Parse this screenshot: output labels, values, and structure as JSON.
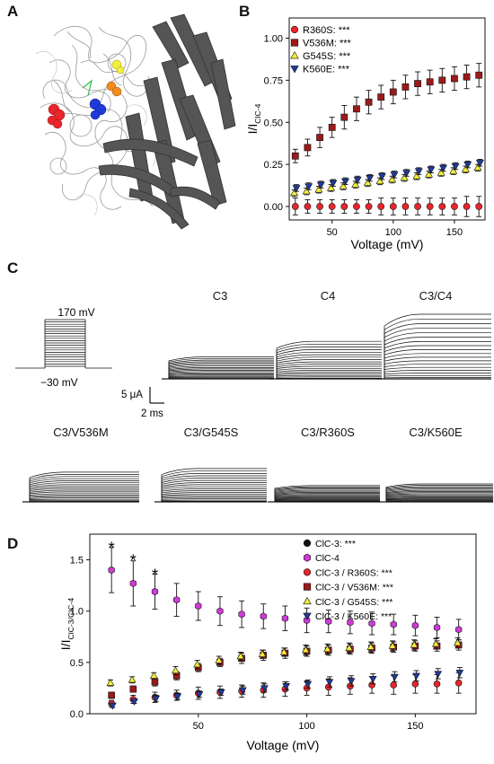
{
  "panels": {
    "a": "A",
    "b": "B",
    "c": "C",
    "d": "D"
  },
  "panel_c": {
    "protocol": {
      "top_label": "170 mV",
      "bottom_label": "−30 mV"
    },
    "scale_bar": {
      "current": "5 μA",
      "time": "2 ms"
    },
    "traces": [
      {
        "label": "C3",
        "amp": 0.34
      },
      {
        "label": "C4",
        "amp": 0.58
      },
      {
        "label": "C3/C4",
        "amp": 1.0
      },
      {
        "label": "C3/V536M",
        "amp": 0.58
      },
      {
        "label": "C3/G545S",
        "amp": 0.65
      },
      {
        "label": "C3/R360S",
        "amp": 0.32
      },
      {
        "label": "C3/K560E",
        "amp": 0.35
      }
    ]
  },
  "chart_data": [
    {
      "type": "scatter",
      "ylabel_main": "I/I",
      "ylabel_sub": "ClC-4",
      "xlabel": "Voltage (mV)",
      "xlim": [
        15,
        175
      ],
      "ylim": [
        -0.08,
        1.12
      ],
      "xticks": [
        50,
        100,
        150
      ],
      "yticks": [
        0.0,
        0.25,
        0.5,
        0.75,
        1.0
      ],
      "ytick_labels": [
        "0.00",
        "0.25",
        "0.50",
        "0.75",
        "1.00"
      ],
      "x": [
        20,
        30,
        40,
        50,
        60,
        70,
        80,
        90,
        100,
        110,
        120,
        130,
        140,
        150,
        160,
        170
      ],
      "series": [
        {
          "name": "R360S: ***",
          "marker": "circle",
          "color": "#e8262b",
          "values": [
            0.0,
            0.0,
            0.0,
            0.0,
            0.0,
            0.0,
            0.0,
            0.0,
            0.0,
            0.0,
            0.0,
            0.0,
            0.0,
            0.0,
            0.0,
            0.0
          ],
          "err": [
            0.05,
            0.04,
            0.04,
            0.04,
            0.04,
            0.04,
            0.04,
            0.05,
            0.05,
            0.05,
            0.05,
            0.05,
            0.05,
            0.05,
            0.06,
            0.06
          ]
        },
        {
          "name": "V536M: ***",
          "marker": "square",
          "color": "#9c1a1a",
          "values": [
            0.3,
            0.35,
            0.41,
            0.47,
            0.53,
            0.58,
            0.62,
            0.65,
            0.68,
            0.71,
            0.73,
            0.74,
            0.75,
            0.76,
            0.77,
            0.78
          ],
          "err": [
            0.04,
            0.05,
            0.06,
            0.06,
            0.07,
            0.07,
            0.07,
            0.07,
            0.07,
            0.07,
            0.07,
            0.07,
            0.07,
            0.07,
            0.07,
            0.07
          ]
        },
        {
          "name": "G545S: ***",
          "marker": "triangle-up",
          "color": "#f2ee3a",
          "values": [
            0.08,
            0.09,
            0.1,
            0.11,
            0.12,
            0.13,
            0.14,
            0.15,
            0.16,
            0.17,
            0.18,
            0.19,
            0.2,
            0.21,
            0.22,
            0.23
          ],
          "err": [
            0.02,
            0.02,
            0.02,
            0.02,
            0.02,
            0.02,
            0.02,
            0.02,
            0.02,
            0.02,
            0.02,
            0.02,
            0.02,
            0.02,
            0.02,
            0.02
          ]
        },
        {
          "name": "K560E: ***",
          "marker": "triangle-down",
          "color": "#1f3a9e",
          "values": [
            0.11,
            0.12,
            0.13,
            0.14,
            0.15,
            0.16,
            0.17,
            0.18,
            0.19,
            0.2,
            0.21,
            0.22,
            0.23,
            0.24,
            0.25,
            0.26
          ],
          "err": [
            0.02,
            0.02,
            0.02,
            0.02,
            0.02,
            0.02,
            0.02,
            0.02,
            0.02,
            0.02,
            0.02,
            0.02,
            0.02,
            0.02,
            0.02,
            0.02
          ]
        }
      ],
      "legend": "top-left"
    },
    {
      "type": "scatter",
      "ylabel_main": "I/I",
      "ylabel_sub": "ClC-3/ClC-4",
      "xlabel": "Voltage (mV)",
      "xlim": [
        0,
        178
      ],
      "ylim": [
        0.0,
        1.75
      ],
      "xticks": [
        50,
        100,
        150
      ],
      "yticks": [
        0.0,
        0.5,
        1.0,
        1.5
      ],
      "ytick_labels": [
        "0.0",
        "0.5",
        "1.0",
        "1.5"
      ],
      "x": [
        10,
        20,
        30,
        40,
        50,
        60,
        70,
        80,
        90,
        100,
        110,
        120,
        130,
        140,
        150,
        160,
        170
      ],
      "annotations": [
        {
          "text": "*",
          "x": 10,
          "y": 1.63
        },
        {
          "text": "*",
          "x": 20,
          "y": 1.51
        },
        {
          "text": "*",
          "x": 30,
          "y": 1.37
        }
      ],
      "series": [
        {
          "name": "ClC-3: ***",
          "marker": "circle",
          "color": "#111111",
          "values": [],
          "err": []
        },
        {
          "name": "ClC-4",
          "marker": "hexagon",
          "color": "#d23ad8",
          "values": [
            1.4,
            1.27,
            1.19,
            1.11,
            1.05,
            1.0,
            0.97,
            0.95,
            0.93,
            0.91,
            0.9,
            0.89,
            0.88,
            0.87,
            0.86,
            0.84,
            0.82
          ],
          "err": [
            0.22,
            0.22,
            0.17,
            0.16,
            0.14,
            0.14,
            0.13,
            0.12,
            0.12,
            0.12,
            0.11,
            0.11,
            0.11,
            0.1,
            0.1,
            0.1,
            0.1
          ]
        },
        {
          "name": "ClC-3 / R360S: ***",
          "marker": "circle",
          "color": "#e8262b",
          "values": [
            0.1,
            0.14,
            0.16,
            0.18,
            0.2,
            0.21,
            0.22,
            0.23,
            0.24,
            0.25,
            0.26,
            0.27,
            0.28,
            0.28,
            0.29,
            0.29,
            0.3
          ],
          "err": [
            0.03,
            0.04,
            0.05,
            0.05,
            0.06,
            0.06,
            0.06,
            0.07,
            0.07,
            0.07,
            0.08,
            0.08,
            0.08,
            0.09,
            0.09,
            0.09,
            0.1
          ]
        },
        {
          "name": "ClC-3 / V536M: ***",
          "marker": "square",
          "color": "#9c1a1a",
          "values": [
            0.18,
            0.24,
            0.31,
            0.37,
            0.45,
            0.5,
            0.54,
            0.57,
            0.59,
            0.61,
            0.62,
            0.63,
            0.64,
            0.65,
            0.66,
            0.66,
            0.67
          ],
          "err": [
            0.03,
            0.03,
            0.04,
            0.04,
            0.04,
            0.04,
            0.05,
            0.05,
            0.05,
            0.05,
            0.05,
            0.05,
            0.05,
            0.05,
            0.05,
            0.05,
            0.05
          ]
        },
        {
          "name": "ClC-3 / G545S: ***",
          "marker": "triangle-up",
          "color": "#f2ee3a",
          "values": [
            0.3,
            0.33,
            0.37,
            0.42,
            0.48,
            0.52,
            0.56,
            0.58,
            0.6,
            0.62,
            0.63,
            0.64,
            0.65,
            0.66,
            0.67,
            0.68,
            0.69
          ],
          "err": [
            0.03,
            0.03,
            0.03,
            0.04,
            0.04,
            0.04,
            0.04,
            0.04,
            0.04,
            0.05,
            0.05,
            0.05,
            0.05,
            0.05,
            0.05,
            0.05,
            0.05
          ]
        },
        {
          "name": "ClC-3 / K560E: ***",
          "marker": "triangle-down",
          "color": "#1f3a9e",
          "values": [
            0.08,
            0.12,
            0.15,
            0.17,
            0.19,
            0.21,
            0.23,
            0.25,
            0.27,
            0.29,
            0.31,
            0.32,
            0.34,
            0.36,
            0.37,
            0.39,
            0.4
          ],
          "err": [
            0.02,
            0.02,
            0.03,
            0.03,
            0.03,
            0.03,
            0.04,
            0.04,
            0.04,
            0.04,
            0.05,
            0.05,
            0.05,
            0.05,
            0.05,
            0.05,
            0.05
          ]
        }
      ],
      "legend": "top-right"
    }
  ]
}
